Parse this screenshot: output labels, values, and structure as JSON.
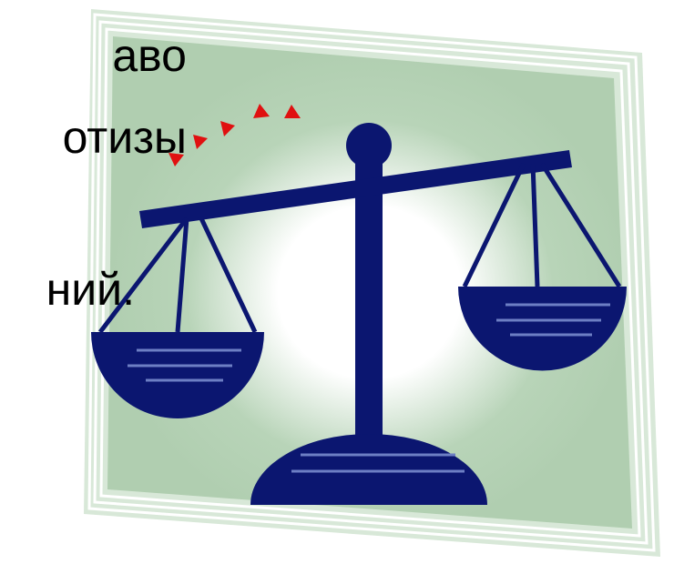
{
  "lines": [
    "аво",
    "отизы",
    "ний."
  ]
}
